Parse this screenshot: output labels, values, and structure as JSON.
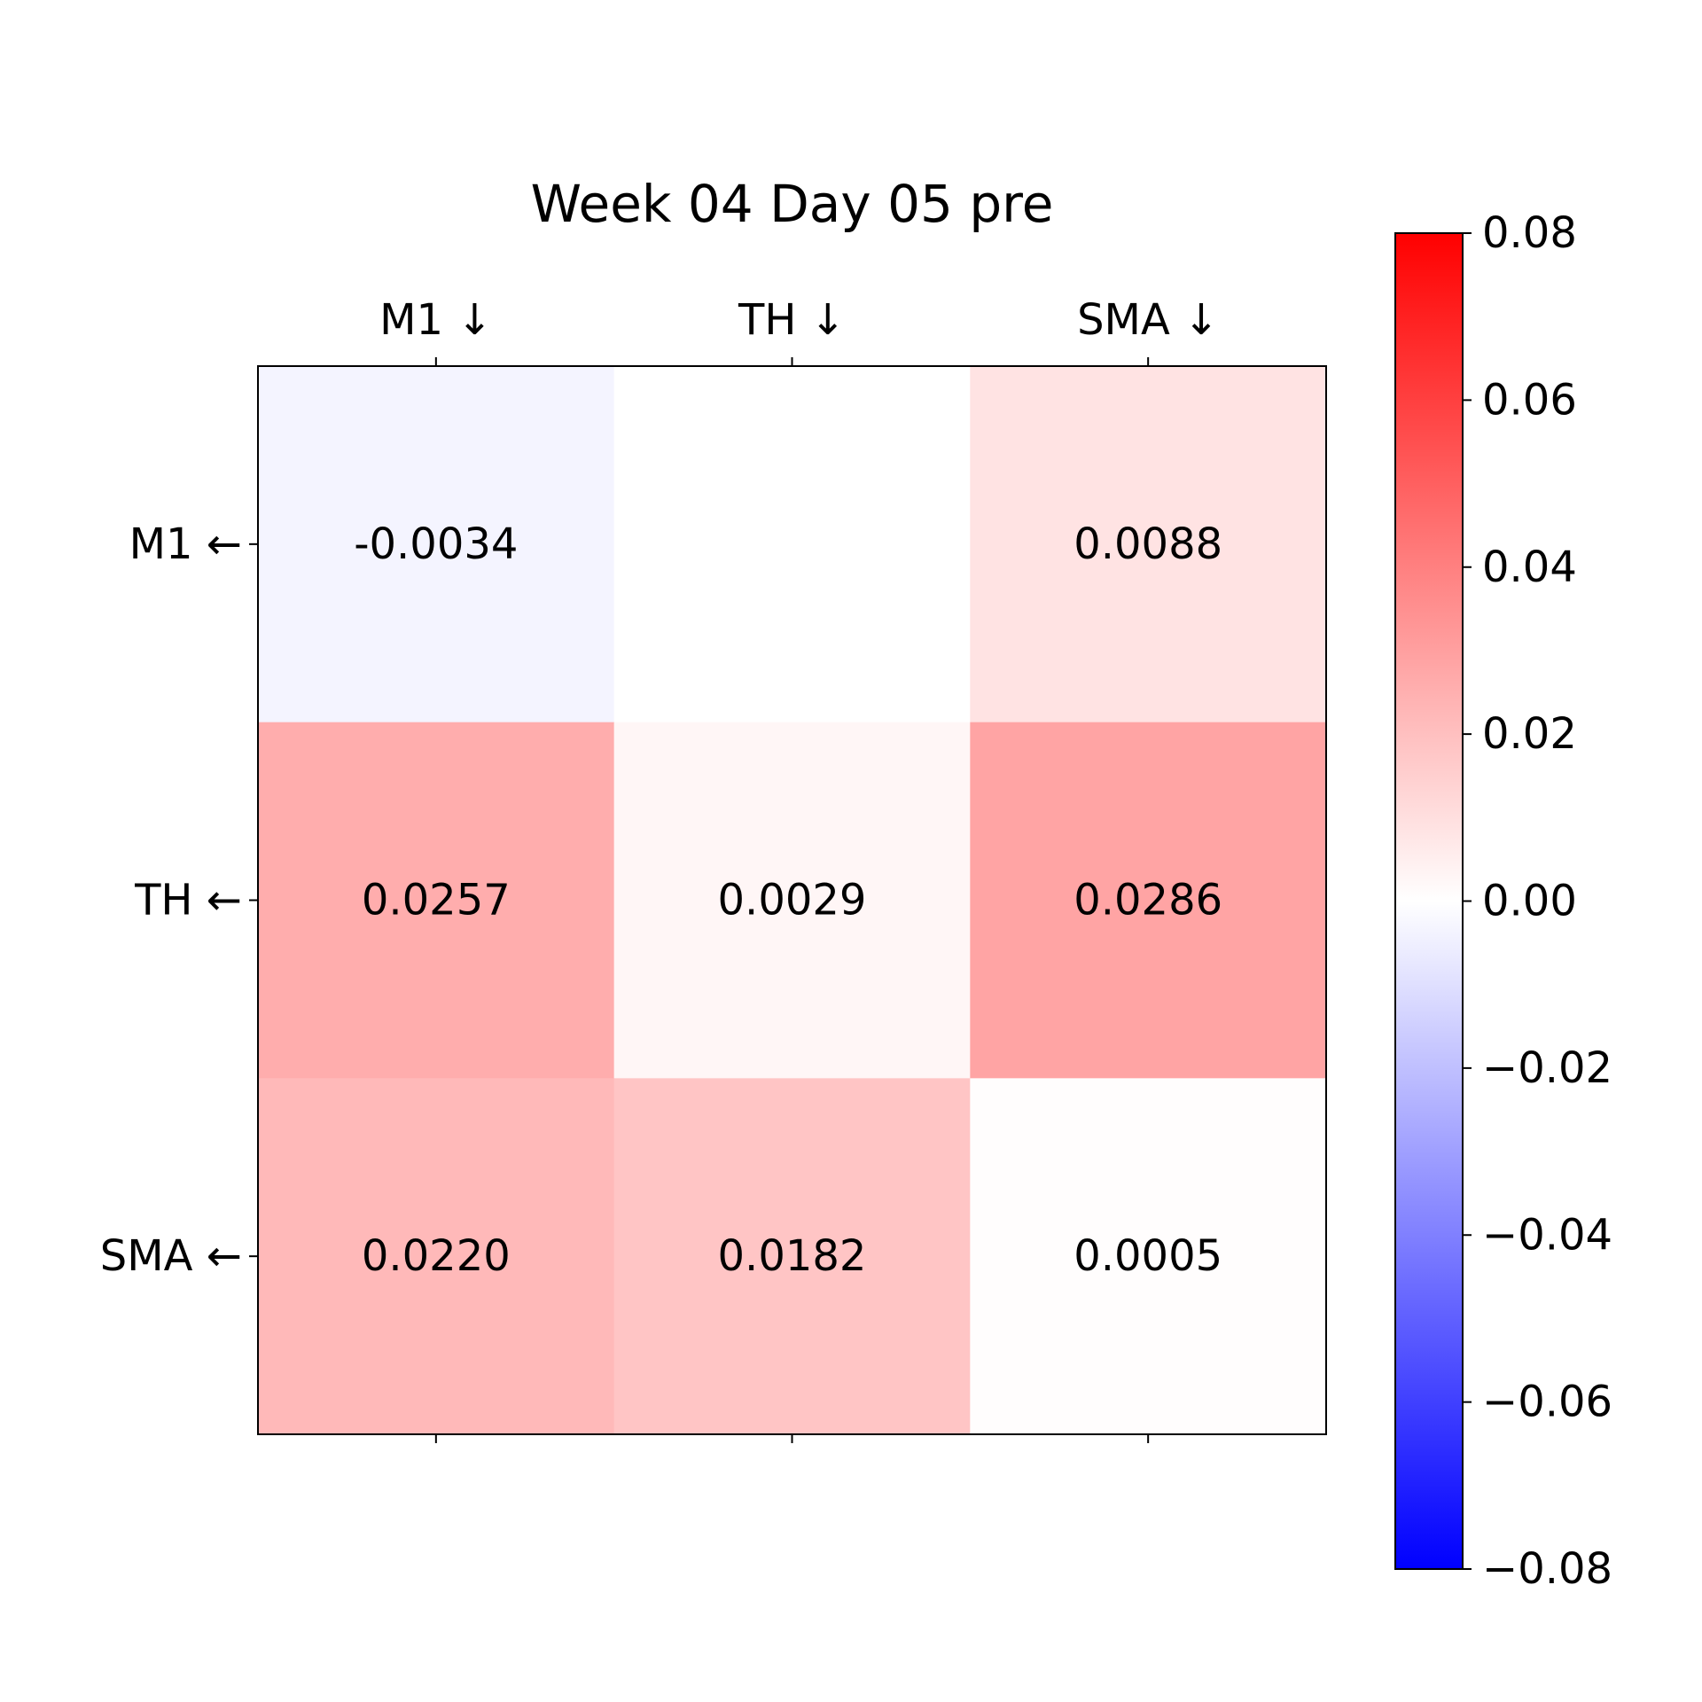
{
  "chart_data": {
    "type": "heatmap",
    "title": "Week 04 Day 05 pre",
    "x_labels": [
      "M1 ↓",
      "TH ↓",
      "SMA ↓"
    ],
    "y_labels": [
      "M1 ←",
      "TH ←",
      "SMA ←"
    ],
    "values": [
      [
        -0.0034,
        0.0,
        0.0088
      ],
      [
        0.0257,
        0.0029,
        0.0286
      ],
      [
        0.022,
        0.0182,
        0.0005
      ]
    ],
    "cell_labels": [
      [
        "-0.0034",
        "",
        "0.0088"
      ],
      [
        "0.0257",
        "0.0029",
        "0.0286"
      ],
      [
        "0.0220",
        "0.0182",
        "0.0005"
      ]
    ],
    "x_axis_position": "top",
    "colormap": "bwr",
    "colormap_colors": {
      "low": "#0000ff",
      "mid": "#ffffff",
      "high": "#ff0000"
    },
    "vmin": -0.08,
    "vmax": 0.08,
    "colorbar": {
      "position": "right",
      "ticks": [
        0.08,
        0.06,
        0.04,
        0.02,
        0.0,
        -0.02,
        -0.04,
        -0.06,
        -0.08
      ],
      "tick_labels": [
        "0.08",
        "0.06",
        "0.04",
        "0.02",
        "0.00",
        "−0.02",
        "−0.04",
        "−0.06",
        "−0.08"
      ]
    }
  }
}
